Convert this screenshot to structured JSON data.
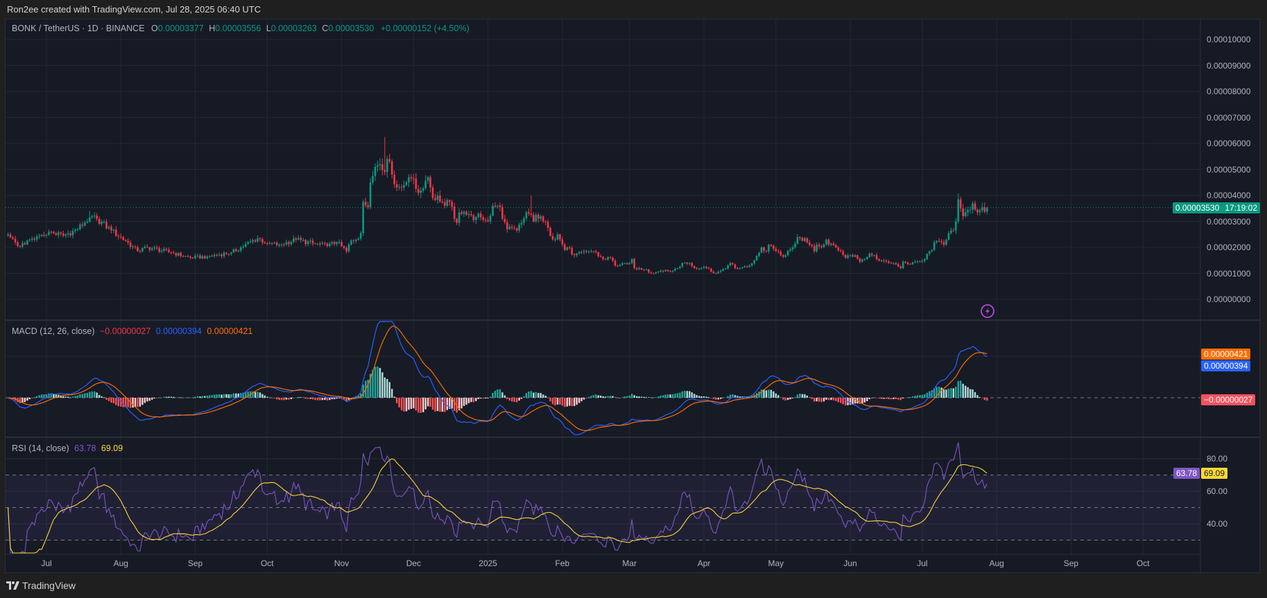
{
  "credit": "Ron2ee created with TradingView.com, Jul 28, 2025 06:40 UTC",
  "brand": "TradingView",
  "symbol_legend": {
    "title": "BONK / TetherUS · 1D · BINANCE",
    "o_label": "O",
    "o_value": "0.00003377",
    "h_label": "H",
    "h_value": "0.00003556",
    "l_label": "L",
    "l_value": "0.00003263",
    "c_label": "C",
    "c_value": "0.00003530",
    "change": "+0.00000152 (+4.50%)"
  },
  "price_tag": {
    "price": "0.00003530",
    "countdown": "17:19:02"
  },
  "macd_legend": {
    "title": "MACD (12, 26, close)",
    "histogram": "−0.00000027",
    "macd": "0.00000394",
    "signal": "0.00000421"
  },
  "macd_tags": {
    "signal": "0.00000421",
    "macd": "0.00000394",
    "histogram": "−0.00000027"
  },
  "rsi_legend": {
    "title": "RSI (14, close)",
    "rsi": "63.78",
    "ma": "69.09"
  },
  "rsi_tags": {
    "ma": "69.09",
    "rsi": "63.78"
  },
  "icons": {
    "alert": "lightning-bolt-icon",
    "logo": "tradingview-logo-icon"
  },
  "colors": {
    "up": "#089981",
    "down": "#f23645",
    "macd": "#2962ff",
    "signal": "#ff6d00",
    "rsi": "#7e57c2",
    "rsi_ma": "#fdd835",
    "hist_up_strong": "#26a69a",
    "hist_up_weak": "#b2dfdb",
    "hist_down_strong": "#ff5252",
    "hist_down_weak": "#ffcdd2"
  },
  "chart_data": {
    "type": "candlestick",
    "interval": "1D",
    "price_axis": {
      "ticks": [
        "0.00010000",
        "0.00009000",
        "0.00008000",
        "0.00007000",
        "0.00006000",
        "0.00005000",
        "0.00004000",
        "0.00003000",
        "0.00002000",
        "0.00001000",
        "0.00000000"
      ],
      "range": [
        0,
        0.0001
      ]
    },
    "rsi_axis": {
      "ticks": [
        "80.00",
        "60.00",
        "40.00"
      ],
      "bands": [
        70,
        50,
        30
      ]
    },
    "time_axis": [
      {
        "label": "Jul",
        "date": "2024-07-01"
      },
      {
        "label": "Aug",
        "date": "2024-08-01"
      },
      {
        "label": "Sep",
        "date": "2024-09-01"
      },
      {
        "label": "Oct",
        "date": "2024-10-01"
      },
      {
        "label": "Nov",
        "date": "2024-11-01"
      },
      {
        "label": "Dec",
        "date": "2024-12-01"
      },
      {
        "label": "2025",
        "date": "2025-01-01"
      },
      {
        "label": "Feb",
        "date": "2025-02-01"
      },
      {
        "label": "Mar",
        "date": "2025-03-01"
      },
      {
        "label": "Apr",
        "date": "2025-04-01"
      },
      {
        "label": "May",
        "date": "2025-05-01"
      },
      {
        "label": "Jun",
        "date": "2025-06-01"
      },
      {
        "label": "Jul",
        "date": "2025-07-01"
      },
      {
        "label": "Aug",
        "date": "2025-08-01"
      },
      {
        "label": "Sep",
        "date": "2025-09-01"
      },
      {
        "label": "Oct",
        "date": "2025-10-01"
      }
    ],
    "last_candle": {
      "date": "2025-07-28",
      "open": 3.377e-05,
      "high": 3.556e-05,
      "low": 3.263e-05,
      "close": 3.53e-05
    },
    "closes": [
      [
        "2024-06-15",
        2.5e-05
      ],
      [
        "2024-06-19",
        2.05e-05
      ],
      [
        "2024-06-26",
        2.3e-05
      ],
      [
        "2024-07-02",
        2.6e-05
      ],
      [
        "2024-07-08",
        2.45e-05
      ],
      [
        "2024-07-14",
        2.7e-05
      ],
      [
        "2024-07-19",
        3.15e-05,
        3.4e-05
      ],
      [
        "2024-07-22",
        3.1e-05
      ],
      [
        "2024-07-28",
        2.65e-05
      ],
      [
        "2024-08-03",
        2.25e-05
      ],
      [
        "2024-08-08",
        1.85e-05
      ],
      [
        "2024-08-12",
        2e-05
      ],
      [
        "2024-08-22",
        1.8e-05
      ],
      [
        "2024-08-30",
        1.6e-05
      ],
      [
        "2024-09-06",
        1.65e-05
      ],
      [
        "2024-09-16",
        1.8e-05
      ],
      [
        "2024-09-20",
        2e-05
      ],
      [
        "2024-09-27",
        2.35e-05
      ],
      [
        "2024-10-01",
        2.15e-05
      ],
      [
        "2024-10-06",
        2.1e-05
      ],
      [
        "2024-10-13",
        2.3e-05
      ],
      [
        "2024-10-20",
        2.15e-05
      ],
      [
        "2024-10-26",
        2.05e-05
      ],
      [
        "2024-10-30",
        2.2e-05
      ],
      [
        "2024-11-03",
        1.85e-05
      ],
      [
        "2024-11-05",
        2.27e-05
      ],
      [
        "2024-11-07",
        2.3e-05
      ],
      [
        "2024-11-09",
        2.55e-05
      ],
      [
        "2024-11-10",
        3.75e-05
      ],
      [
        "2024-11-12",
        3.55e-05
      ],
      [
        "2024-11-13",
        4.5e-05
      ],
      [
        "2024-11-14",
        4.75e-05
      ],
      [
        "2024-11-15",
        5.1e-05
      ],
      [
        "2024-11-17",
        5.2e-05
      ],
      [
        "2024-11-19",
        4.9e-05,
        6.25e-05
      ],
      [
        "2024-11-20",
        5.4e-05
      ],
      [
        "2024-11-22",
        4.8e-05
      ],
      [
        "2024-11-24",
        4.3e-05
      ],
      [
        "2024-11-27",
        4.4e-05
      ],
      [
        "2024-11-29",
        4.7e-05
      ],
      [
        "2024-12-01",
        4.65e-05
      ],
      [
        "2024-12-03",
        4.1e-05
      ],
      [
        "2024-12-07",
        4.7e-05
      ],
      [
        "2024-12-09",
        3.9e-05
      ],
      [
        "2024-12-11",
        4e-05
      ],
      [
        "2024-12-14",
        3.6e-05
      ],
      [
        "2024-12-16",
        3.75e-05
      ],
      [
        "2024-12-18",
        3.1e-05
      ],
      [
        "2024-12-19",
        2.95e-05
      ],
      [
        "2024-12-20",
        3.35e-05
      ],
      [
        "2024-12-23",
        3.25e-05
      ],
      [
        "2024-12-26",
        3.05e-05
      ],
      [
        "2024-12-28",
        3.3e-05
      ],
      [
        "2024-12-31",
        3.05e-05
      ],
      [
        "2025-01-01",
        3e-05
      ],
      [
        "2025-01-03",
        3.6e-05
      ],
      [
        "2025-01-06",
        3.55e-05
      ],
      [
        "2025-01-07",
        3.1e-05
      ],
      [
        "2025-01-09",
        2.7e-05
      ],
      [
        "2025-01-13",
        2.65e-05
      ],
      [
        "2025-01-15",
        2.95e-05
      ],
      [
        "2025-01-17",
        3.35e-05
      ],
      [
        "2025-01-19",
        3.25e-05,
        4e-05
      ],
      [
        "2025-01-20",
        3e-05
      ],
      [
        "2025-01-21",
        3.25e-05
      ],
      [
        "2025-01-24",
        3e-05
      ],
      [
        "2025-01-26",
        2.75e-05
      ],
      [
        "2025-01-28",
        2.3e-05
      ],
      [
        "2025-01-30",
        2.5e-05
      ],
      [
        "2025-02-02",
        1.9e-05
      ],
      [
        "2025-02-03",
        2e-05
      ],
      [
        "2025-02-06",
        1.7e-05
      ],
      [
        "2025-02-12",
        1.85e-05
      ],
      [
        "2025-02-14",
        1.85e-05
      ],
      [
        "2025-02-18",
        1.55e-05
      ],
      [
        "2025-02-21",
        1.6e-05
      ],
      [
        "2025-02-23",
        1.3e-05
      ],
      [
        "2025-02-28",
        1.35e-05
      ],
      [
        "2025-03-02",
        1.55e-05
      ],
      [
        "2025-03-03",
        1.2e-05
      ],
      [
        "2025-03-08",
        1.15e-05
      ],
      [
        "2025-03-10",
        1e-05
      ],
      [
        "2025-03-14",
        1.1e-05
      ],
      [
        "2025-03-18",
        1.07e-05
      ],
      [
        "2025-03-21",
        1.2e-05
      ],
      [
        "2025-03-23",
        1.4e-05
      ],
      [
        "2025-03-26",
        1.4e-05
      ],
      [
        "2025-03-28",
        1.2e-05
      ],
      [
        "2025-04-01",
        1.25e-05
      ],
      [
        "2025-04-06",
        1e-05
      ],
      [
        "2025-04-08",
        1.1e-05
      ],
      [
        "2025-04-11",
        1.3e-05
      ],
      [
        "2025-04-12",
        1.4e-05
      ],
      [
        "2025-04-14",
        1.2e-05
      ],
      [
        "2025-04-16",
        1.2e-05
      ],
      [
        "2025-04-19",
        1.25e-05
      ],
      [
        "2025-04-22",
        1.5e-05
      ],
      [
        "2025-04-25",
        2e-05
      ],
      [
        "2025-04-27",
        1.85e-05
      ],
      [
        "2025-04-28",
        2.1e-05
      ],
      [
        "2025-04-30",
        1.95e-05
      ],
      [
        "2025-05-03",
        1.7e-05
      ],
      [
        "2025-05-05",
        1.7e-05
      ],
      [
        "2025-05-08",
        2e-05
      ],
      [
        "2025-05-10",
        2.4e-05
      ],
      [
        "2025-05-12",
        2.25e-05
      ],
      [
        "2025-05-13",
        2.35e-05
      ],
      [
        "2025-05-15",
        2.1e-05
      ],
      [
        "2025-05-17",
        1.85e-05
      ],
      [
        "2025-05-18",
        2.1e-05
      ],
      [
        "2025-05-20",
        2e-05
      ],
      [
        "2025-05-22",
        2.3e-05
      ],
      [
        "2025-05-23",
        2.1e-05
      ],
      [
        "2025-05-26",
        2e-05
      ],
      [
        "2025-05-28",
        1.85e-05
      ],
      [
        "2025-05-30",
        1.6e-05
      ],
      [
        "2025-06-01",
        1.7e-05
      ],
      [
        "2025-06-03",
        1.7e-05
      ],
      [
        "2025-06-05",
        1.45e-05
      ],
      [
        "2025-06-07",
        1.55e-05
      ],
      [
        "2025-06-09",
        1.75e-05
      ],
      [
        "2025-06-11",
        1.7e-05
      ],
      [
        "2025-06-12",
        1.55e-05
      ],
      [
        "2025-06-15",
        1.5e-05
      ],
      [
        "2025-06-17",
        1.4e-05
      ],
      [
        "2025-06-20",
        1.35e-05
      ],
      [
        "2025-06-22",
        1.2e-05
      ],
      [
        "2025-06-23",
        1.45e-05
      ],
      [
        "2025-06-26",
        1.35e-05
      ],
      [
        "2025-06-28",
        1.45e-05
      ],
      [
        "2025-06-30",
        1.45e-05
      ],
      [
        "2025-07-02",
        1.55e-05
      ],
      [
        "2025-07-03",
        1.75e-05
      ],
      [
        "2025-07-05",
        1.9e-05
      ],
      [
        "2025-07-06",
        2.2e-05
      ],
      [
        "2025-07-07",
        2.25e-05
      ],
      [
        "2025-07-09",
        2.2e-05
      ],
      [
        "2025-07-10",
        2.1e-05
      ],
      [
        "2025-07-12",
        2.55e-05
      ],
      [
        "2025-07-14",
        2.65e-05
      ],
      [
        "2025-07-15",
        3e-05
      ],
      [
        "2025-07-16",
        3.85e-05,
        4.08e-05
      ],
      [
        "2025-07-17",
        3.5e-05
      ],
      [
        "2025-07-18",
        3.2e-05
      ],
      [
        "2025-07-19",
        3.35e-05
      ],
      [
        "2025-07-21",
        3.45e-05
      ],
      [
        "2025-07-22",
        3.7e-05
      ],
      [
        "2025-07-23",
        3.45e-05
      ],
      [
        "2025-07-24",
        3.35e-05
      ],
      [
        "2025-07-26",
        3.55e-05
      ],
      [
        "2025-07-27",
        3.377e-05
      ]
    ]
  }
}
